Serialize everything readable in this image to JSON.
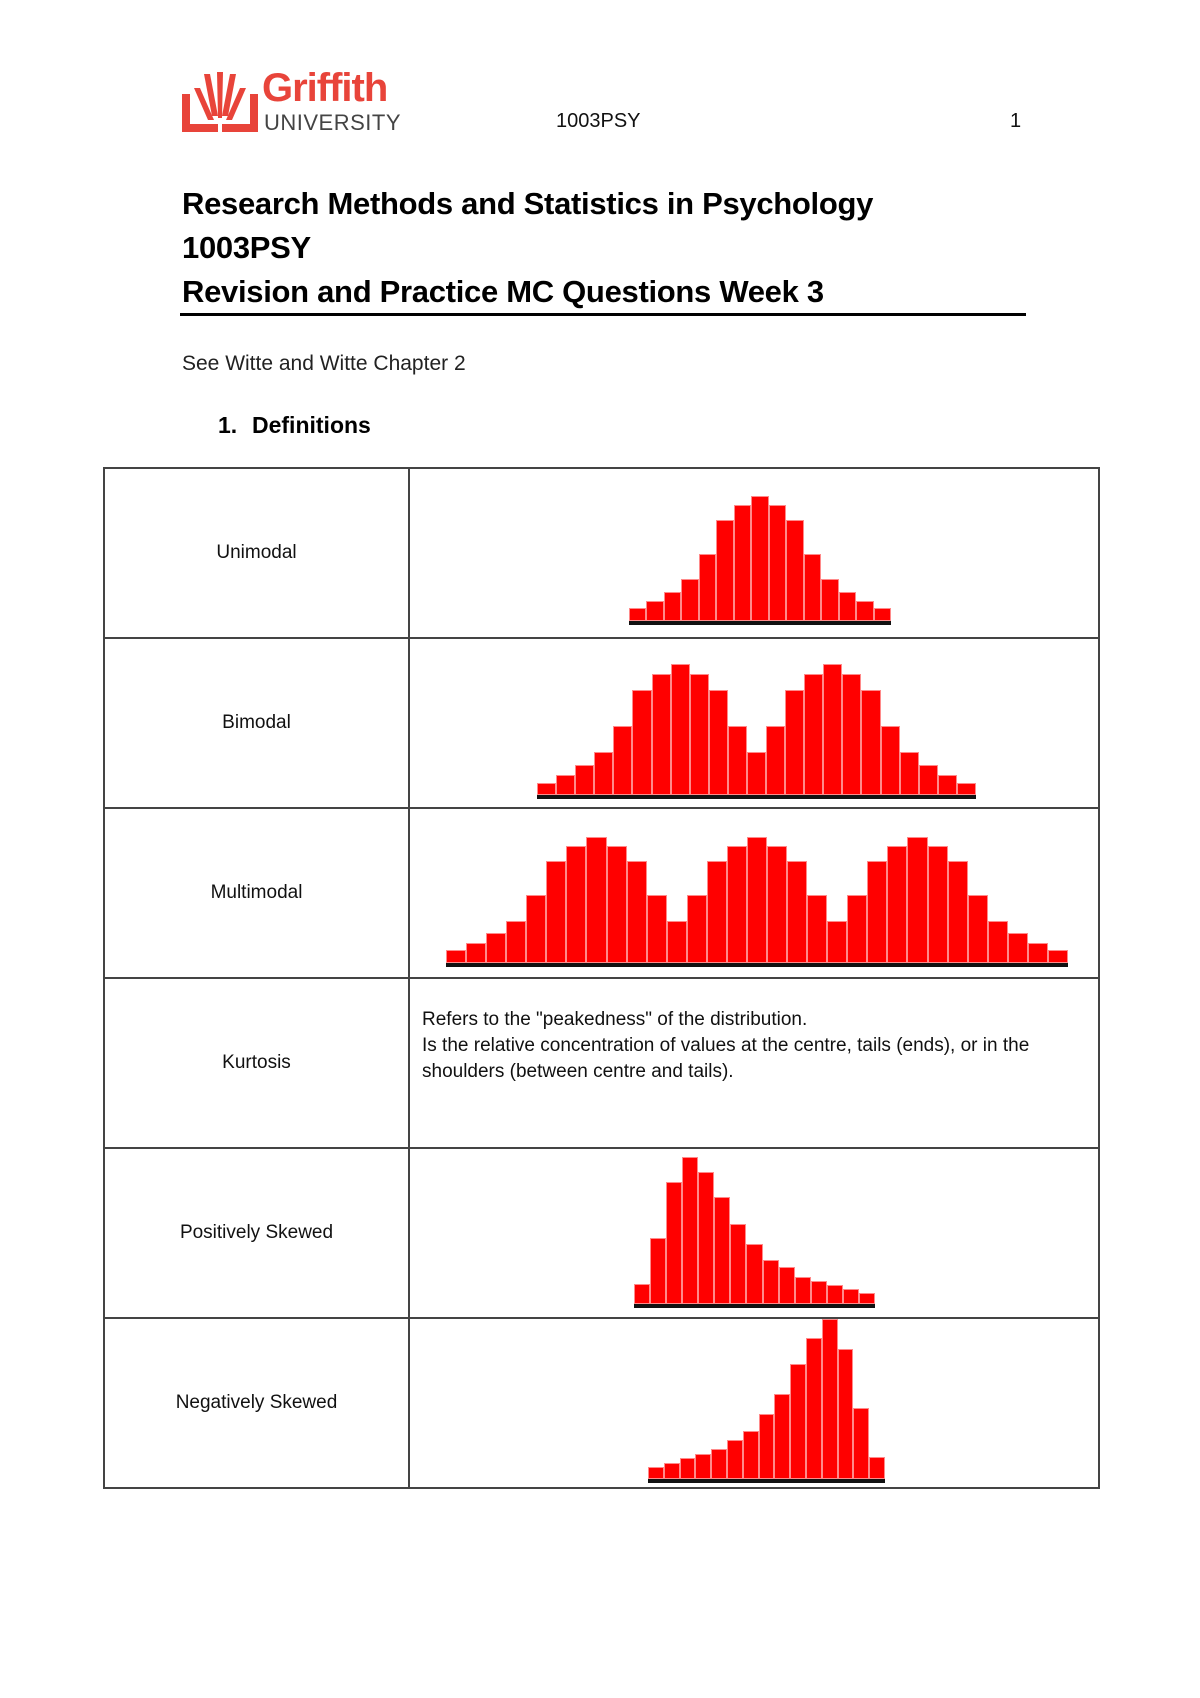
{
  "header": {
    "logo": {
      "word": "Griffith",
      "sub": "UNIVERSITY",
      "color": "#e8443a"
    },
    "course_code": "1003PSY",
    "page_number": "1"
  },
  "title": {
    "line1": "Research Methods and Statistics in Psychology",
    "line2": "1003PSY",
    "line3": "Revision and Practice MC Questions Week 3"
  },
  "reference": "See Witte and Witte Chapter 2",
  "section": {
    "number": "1.",
    "label": "Definitions"
  },
  "rows": [
    {
      "term": "Unimodal"
    },
    {
      "term": "Bimodal"
    },
    {
      "term": "Multimodal"
    },
    {
      "term": "Kurtosis",
      "description_line1": "Refers to the \"peakedness\" of the distribution.",
      "description_line2": "Is the relative concentration of values at the centre, tails (ends), or in the shoulders (between centre and tails)."
    },
    {
      "term": "Positively Skewed"
    },
    {
      "term": "Negatively Skewed"
    }
  ],
  "chart_data": [
    {
      "type": "bar",
      "title": "Unimodal",
      "bar_color": "#ff0000",
      "values": [
        13,
        20,
        29,
        42,
        67,
        101,
        116,
        125,
        116,
        101,
        67,
        42,
        29,
        20,
        13
      ]
    },
    {
      "type": "bar",
      "title": "Bimodal",
      "bar_color": "#ff0000",
      "values": [
        12,
        20,
        30,
        43,
        69,
        105,
        121,
        131,
        121,
        105,
        69,
        43,
        69,
        105,
        121,
        131,
        121,
        105,
        69,
        43,
        30,
        20,
        12
      ]
    },
    {
      "type": "bar",
      "title": "Multimodal",
      "bar_color": "#ff0000",
      "values": [
        13,
        20,
        30,
        42,
        68,
        102,
        117,
        126,
        117,
        102,
        68,
        42,
        68,
        102,
        117,
        126,
        117,
        102,
        68,
        42,
        68,
        102,
        117,
        126,
        117,
        102,
        68,
        42,
        30,
        20,
        13
      ]
    },
    {
      "type": "bar",
      "title": "Positively Skewed",
      "bar_color": "#ff0000",
      "values": [
        20,
        66,
        122,
        147,
        132,
        107,
        80,
        60,
        44,
        37,
        27,
        23,
        19,
        15,
        11
      ]
    },
    {
      "type": "bar",
      "title": "Negatively Skewed",
      "bar_color": "#ff0000",
      "values": [
        12,
        16,
        21,
        25,
        30,
        39,
        48,
        65,
        85,
        115,
        141,
        160,
        130,
        71,
        22
      ]
    }
  ]
}
